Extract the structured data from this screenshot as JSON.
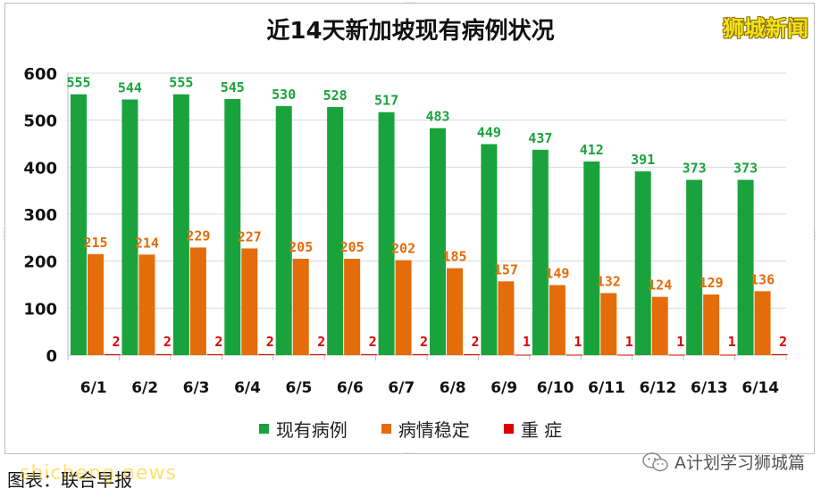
{
  "watermark": "狮城新闻",
  "caption": "图表：联合早报",
  "site_overlay": "shicheng.news",
  "brand": {
    "label": "A计划学习狮城篇",
    "icon": "wechat-icon"
  },
  "colors": {
    "active": "#1aa33c",
    "stable": "#e46c0a",
    "critical": "#e00000"
  },
  "chart_data": {
    "type": "bar",
    "title": "近14天新加坡现有病例状况",
    "xlabel": "",
    "ylabel": "",
    "categories": [
      "6/1",
      "6/2",
      "6/3",
      "6/4",
      "6/5",
      "6/6",
      "6/7",
      "6/8",
      "6/9",
      "6/10",
      "6/11",
      "6/12",
      "6/13",
      "6/14"
    ],
    "series": [
      {
        "name": "现有病例",
        "values": [
          555,
          544,
          555,
          545,
          530,
          528,
          517,
          483,
          449,
          437,
          412,
          391,
          373,
          373
        ]
      },
      {
        "name": "病情稳定",
        "values": [
          215,
          214,
          229,
          227,
          205,
          205,
          202,
          185,
          157,
          149,
          132,
          124,
          129,
          136
        ]
      },
      {
        "name": "重 症",
        "values": [
          2,
          2,
          2,
          2,
          2,
          2,
          2,
          2,
          1,
          1,
          1,
          1,
          1,
          2
        ]
      }
    ],
    "ylim": [
      0,
      600
    ],
    "yticks": [
      0,
      100,
      200,
      300,
      400,
      500,
      600
    ],
    "grid": true,
    "legend": "bottom"
  }
}
